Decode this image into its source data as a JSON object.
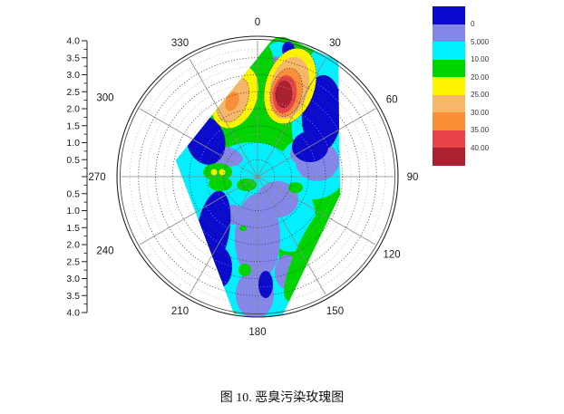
{
  "caption": "图 10. 恶臭污染玫瑰图",
  "chart_data": {
    "type": "heatmap",
    "subtype": "polar_filled_contour_rose",
    "title": "恶臭污染玫瑰图",
    "angle_labels": [
      "0",
      "30",
      "60",
      "90",
      "120",
      "150",
      "180",
      "210",
      "240",
      "270",
      "300",
      "330"
    ],
    "radial_tick_labels": [
      "4.0",
      "3.5",
      "3.0",
      "2.5",
      "2.0",
      "1.5",
      "1.0",
      "0.5",
      "0.5",
      "1.0",
      "1.5",
      "2.0",
      "2.5",
      "3.0",
      "3.5",
      "4.0"
    ],
    "radial_range": [
      0,
      4
    ],
    "radial_step": 0.5,
    "grid": {
      "rings_major_step": 0.5,
      "rings_minor_step": 0.25,
      "spoke_step_deg": 30
    },
    "legend": {
      "boundary_labels": [
        "0",
        "5.000",
        "10.00",
        "20.00",
        "25.00",
        "30.00",
        "35.00",
        "40.00"
      ],
      "band_colors": [
        "#0b0bd0",
        "#8486e8",
        "#00f0ff",
        "#00d400",
        "#fcf400",
        "#f6b768",
        "#fa8f38",
        "#e84348",
        "#ac2130"
      ],
      "band_ranges": [
        "<0",
        "0–5",
        "5–10",
        "10–20",
        "20–25",
        "25–30",
        "30–35",
        "35–40",
        ">40"
      ]
    },
    "features": [
      {
        "name": "primary-hotspot",
        "angle_deg": 15,
        "radius": 2.5,
        "level": "≥40"
      },
      {
        "name": "secondary-hotspot",
        "angle_deg": 343,
        "radius": 2.4,
        "level": "25–30"
      },
      {
        "name": "low-pocket-northeast",
        "angle_deg": 35,
        "radius": 2.0,
        "level": "<0"
      },
      {
        "name": "low-pocket-west",
        "angle_deg": 295,
        "radius": 1.8,
        "level": "<0"
      },
      {
        "name": "low-pocket-south-southwest",
        "angle_deg": 197,
        "radius": 2.3,
        "level": "<0"
      },
      {
        "name": "data-extent",
        "note": "filled data polygon spans roughly NW edge through N, E side to S; NW–W–SW interior of circle is blank"
      }
    ]
  }
}
